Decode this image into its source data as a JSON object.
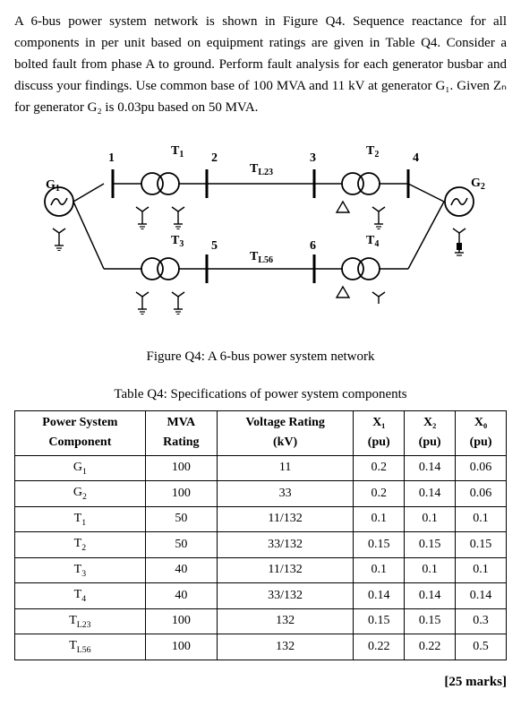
{
  "problem": {
    "text": "A 6-bus power system network is shown in Figure Q4. Sequence reactance for all components in per unit based on equipment ratings are given in Table Q4. Consider a bolted fault from phase A to ground. Perform fault analysis for each generator busbar and discuss your findings. Use common base of 100 MVA and 11 kV at generator G₁. Given Zₙ for generator G₂ is 0.03pu based on 50 MVA."
  },
  "figure": {
    "caption": "Figure Q4: A 6-bus power system network",
    "labels": {
      "G1": "G₁",
      "G2": "G₂",
      "T1": "T₁",
      "T2": "T₂",
      "T3": "T₃",
      "T4": "T₄",
      "TL23": "T",
      "TL23sub": "L23",
      "TL56": "T",
      "TL56sub": "L56",
      "bus1": "1",
      "bus2": "2",
      "bus3": "3",
      "bus4": "4",
      "bus5": "5",
      "bus6": "6"
    },
    "colors": {
      "stroke": "#000000",
      "fill_bg": "#ffffff"
    }
  },
  "table": {
    "caption": "Table Q4: Specifications of power system components",
    "columns": [
      "Power System Component",
      "MVA Rating",
      "Voltage Rating (kV)",
      "X₁ (pu)",
      "X₂ (pu)",
      "X₀ (pu)"
    ],
    "rows": [
      [
        "G₁",
        "100",
        "11",
        "0.2",
        "0.14",
        "0.06"
      ],
      [
        "G₂",
        "100",
        "33",
        "0.2",
        "0.14",
        "0.06"
      ],
      [
        "T₁",
        "50",
        "11/132",
        "0.1",
        "0.1",
        "0.1"
      ],
      [
        "T₂",
        "50",
        "33/132",
        "0.15",
        "0.15",
        "0.15"
      ],
      [
        "T₃",
        "40",
        "11/132",
        "0.1",
        "0.1",
        "0.1"
      ],
      [
        "T₄",
        "40",
        "33/132",
        "0.14",
        "0.14",
        "0.14"
      ],
      [
        "T_L23",
        "100",
        "132",
        "0.15",
        "0.15",
        "0.3"
      ],
      [
        "T_L56",
        "100",
        "132",
        "0.22",
        "0.22",
        "0.5"
      ]
    ],
    "header_labels": {
      "c0a": "Power System",
      "c0b": "Component",
      "c1a": "MVA",
      "c1b": "Rating",
      "c2a": "Voltage Rating",
      "c2b": "(kV)",
      "c3a": "X₁",
      "c3b": "(pu)",
      "c4a": "X₂",
      "c4b": "(pu)",
      "c5a": "X₀",
      "c5b": "(pu)"
    }
  },
  "marks": "[25 marks]"
}
